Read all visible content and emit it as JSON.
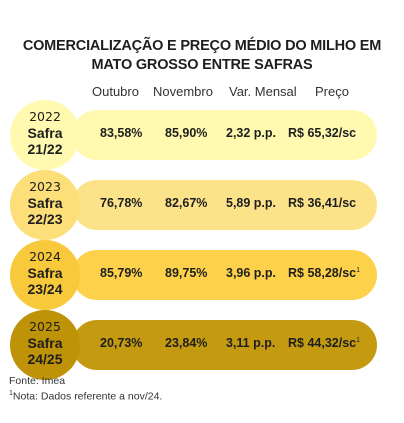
{
  "title_line1": "COMERCIALIZAÇÃO E PREÇO MÉDIO DO MILHO EM",
  "title_line2": "MATO GROSSO ENTRE SAFRAS",
  "columns": [
    "Outubro",
    "Novembro",
    "Var. Mensal",
    "Preço"
  ],
  "chart_data": {
    "type": "table",
    "columns": [
      "Outubro",
      "Novembro",
      "Var. Mensal",
      "Preço"
    ],
    "rows": [
      {
        "year": "2022",
        "safra_label": "Safra",
        "safra": "21/22",
        "outubro": "83,58%",
        "novembro": "85,90%",
        "var_mensal": "2,32 p.p.",
        "preco": "R$ 65,32/sc",
        "note": "",
        "bar_color": "#fffab0",
        "circle_color": "#fffab0"
      },
      {
        "year": "2023",
        "safra_label": "Safra",
        "safra": "22/23",
        "outubro": "76,78%",
        "novembro": "82,67%",
        "var_mensal": "5,89 p.p.",
        "preco": "R$ 36,41/sc",
        "note": "",
        "bar_color": "#fce38a",
        "circle_color": "#fcdf78"
      },
      {
        "year": "2024",
        "safra_label": "Safra",
        "safra": "23/24",
        "outubro": "85,79%",
        "novembro": "89,75%",
        "var_mensal": "3,96 p.p.",
        "preco": "R$ 58,28/sc",
        "note": "1",
        "bar_color": "#fdd24a",
        "circle_color": "#f7c93b"
      },
      {
        "year": "2025",
        "safra_label": "Safra",
        "safra": "24/25",
        "outubro": "20,73%",
        "novembro": "23,84%",
        "var_mensal": "3,11 p.p.",
        "preco": "R$ 44,32/sc",
        "note": "1",
        "bar_color": "#c49a10",
        "circle_color": "#be9308"
      }
    ]
  },
  "footer": {
    "source": "Fonte: Imea",
    "note_mark": "1",
    "note_text": "Nota: Dados referente a nov/24."
  }
}
